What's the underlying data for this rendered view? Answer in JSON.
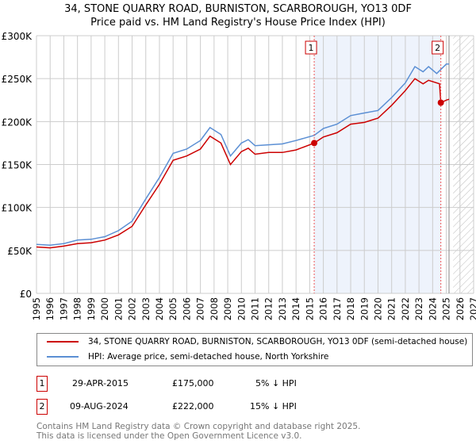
{
  "title": "34, STONE QUARRY ROAD, BURNISTON, SCARBOROUGH, YO13 0DF",
  "subtitle": "Price paid vs. HM Land Registry's House Price Index (HPI)",
  "chart_data": {
    "type": "line",
    "title": "34, STONE QUARRY ROAD, BURNISTON, SCARBOROUGH, YO13 0DF",
    "subtitle": "Price paid vs. HM Land Registry's House Price Index (HPI)",
    "xlim": [
      1995,
      2027
    ],
    "ylim": [
      0,
      300000
    ],
    "x_ticks": [
      "1995",
      "1996",
      "1997",
      "1998",
      "1999",
      "2000",
      "2001",
      "2002",
      "2003",
      "2004",
      "2005",
      "2006",
      "2007",
      "2008",
      "2009",
      "2010",
      "2011",
      "2012",
      "2013",
      "2014",
      "2015",
      "2016",
      "2017",
      "2018",
      "2019",
      "2020",
      "2021",
      "2022",
      "2023",
      "2024",
      "2025",
      "2026",
      "2027"
    ],
    "y_ticks": [
      "£0",
      "£50K",
      "£100K",
      "£150K",
      "£200K",
      "£250K",
      "£300K"
    ],
    "grid": true,
    "series": [
      {
        "name": "34, STONE QUARRY ROAD, BURNISTON, SCARBOROUGH, YO13 0DF (semi-detached house)",
        "color": "#cc0000",
        "x": [
          1995,
          1996,
          1997,
          1998,
          1999,
          2000,
          2001,
          2002,
          2003,
          2004,
          2005,
          2006,
          2007,
          2007.7,
          2008.5,
          2009.2,
          2010,
          2010.5,
          2011,
          2012,
          2013,
          2014,
          2015.33,
          2016,
          2017,
          2018,
          2019,
          2020,
          2021,
          2022,
          2022.7,
          2023.3,
          2023.7,
          2024.5,
          2024.6,
          2025,
          2025.2
        ],
        "y": [
          54000,
          53000,
          55000,
          58000,
          59000,
          62000,
          68000,
          78000,
          103000,
          127000,
          155000,
          160000,
          168000,
          183000,
          175000,
          150000,
          165000,
          169000,
          162000,
          164000,
          164000,
          167000,
          175000,
          182000,
          187000,
          197000,
          199000,
          204000,
          219000,
          236000,
          250000,
          244000,
          248000,
          244000,
          222000,
          225000,
          226000
        ]
      },
      {
        "name": "HPI: Average price, semi-detached house, North Yorkshire",
        "color": "#5b8fd4",
        "x": [
          1995,
          1996,
          1997,
          1998,
          1999,
          2000,
          2001,
          2002,
          2003,
          2004,
          2005,
          2006,
          2007,
          2007.7,
          2008.5,
          2009.2,
          2010,
          2010.5,
          2011,
          2012,
          2013,
          2014,
          2015.33,
          2016,
          2017,
          2018,
          2019,
          2020,
          2021,
          2022,
          2022.7,
          2023.3,
          2023.7,
          2024.3,
          2025,
          2025.2
        ],
        "y": [
          57000,
          56000,
          58000,
          62000,
          63000,
          66000,
          73000,
          84000,
          110000,
          135000,
          163000,
          168000,
          178000,
          193000,
          185000,
          160000,
          175000,
          179000,
          172000,
          173000,
          174000,
          178000,
          184000,
          192000,
          197000,
          207000,
          210000,
          213000,
          228000,
          245000,
          264000,
          258000,
          264000,
          256000,
          267000,
          267000
        ]
      }
    ],
    "sales": [
      {
        "label": "1",
        "x": 2015.33,
        "y": 175000
      },
      {
        "label": "2",
        "x": 2024.6,
        "y": 222000
      }
    ],
    "shaded_range": [
      2015.33,
      2024.6
    ],
    "forecast_hatch_from": 2025.5
  },
  "legend": {
    "property": "34, STONE QUARRY ROAD, BURNISTON, SCARBOROUGH, YO13 0DF (semi-detached house)",
    "hpi": "HPI: Average price, semi-detached house, North Yorkshire"
  },
  "transactions": [
    {
      "num": "1",
      "date": "29-APR-2015",
      "price": "£175,000",
      "hpi": "5% ↓ HPI"
    },
    {
      "num": "2",
      "date": "09-AUG-2024",
      "price": "£222,000",
      "hpi": "15% ↓ HPI"
    }
  ],
  "footer": {
    "line1": "Contains HM Land Registry data © Crown copyright and database right 2025.",
    "line2": "This data is licensed under the Open Government Licence v3.0."
  }
}
